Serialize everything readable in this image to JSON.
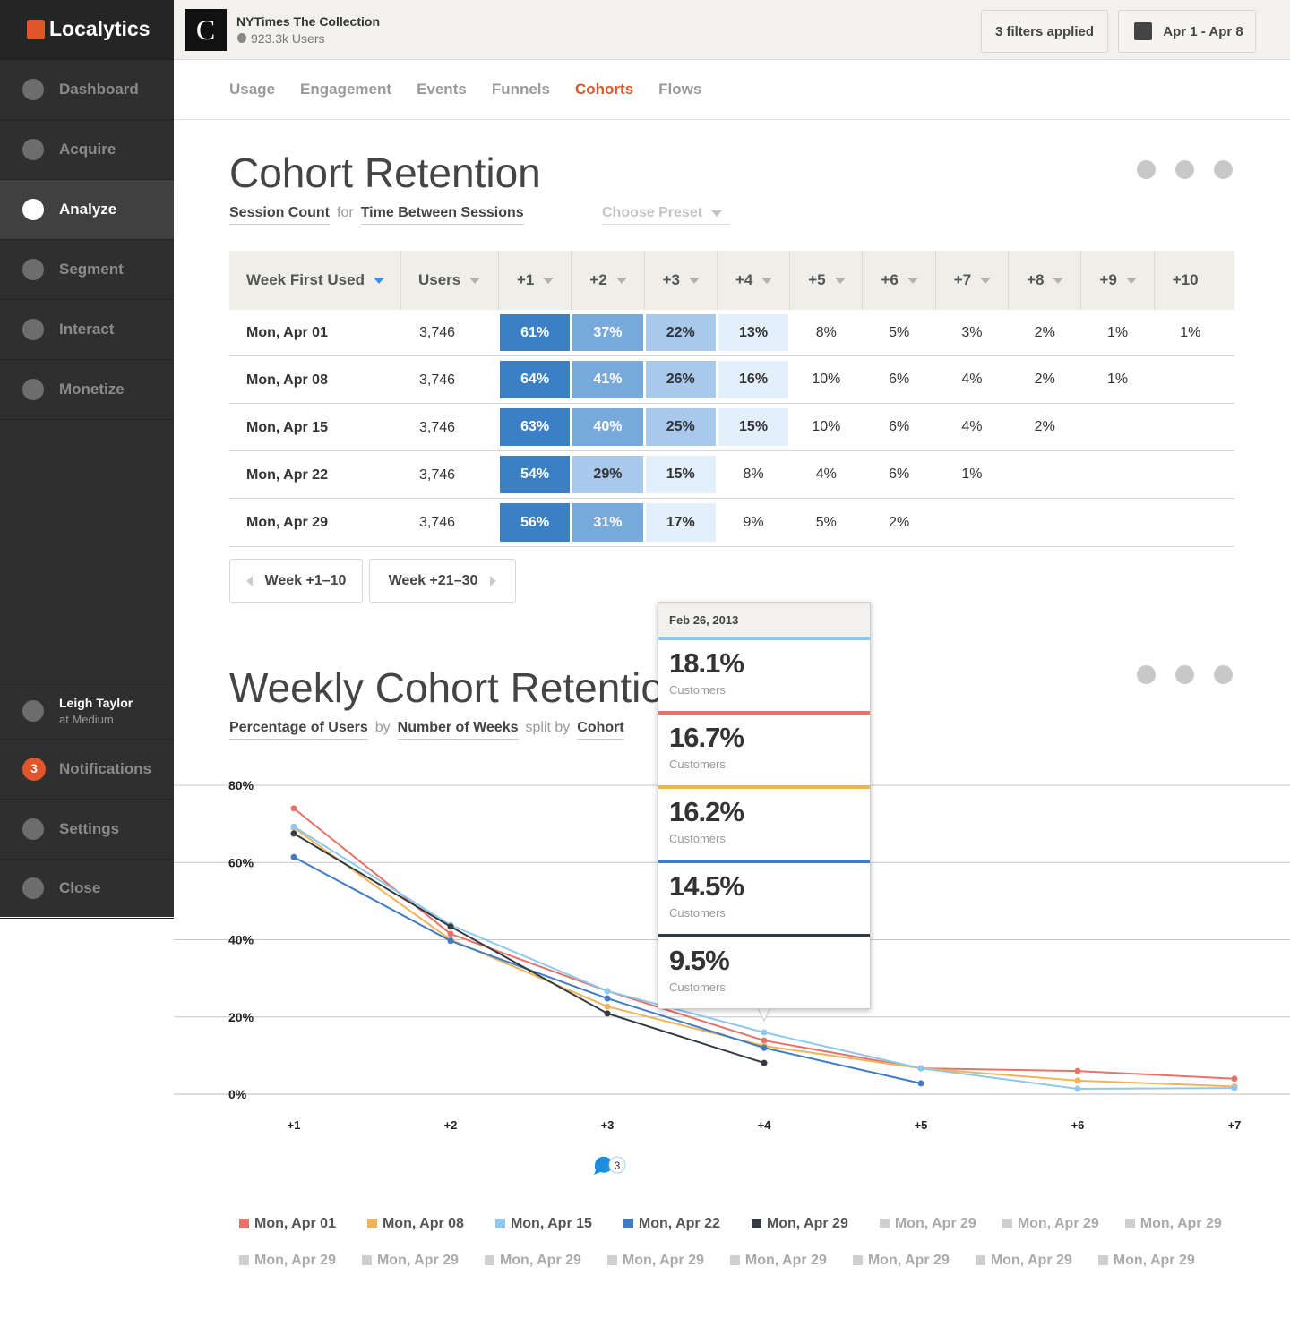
{
  "sidebar": {
    "logo": "Localytics",
    "nav": [
      "Dashboard",
      "Acquire",
      "Analyze",
      "Segment",
      "Interact",
      "Monetize"
    ],
    "active_nav": 2,
    "user_name": "Leigh Taylor",
    "user_org": "at Medium",
    "notification_count": "3",
    "bottom": [
      "Notifications",
      "Settings",
      "Close"
    ]
  },
  "header": {
    "app_name": "NYTimes The Collection",
    "app_users": "923.3k Users",
    "filters": "3 filters applied",
    "date_range": "Apr 1 - Apr 8"
  },
  "tabs": {
    "items": [
      "Usage",
      "Engagement",
      "Events",
      "Funnels",
      "Cohorts",
      "Flows"
    ],
    "active": 4
  },
  "cohort": {
    "title": "Cohort Retention",
    "subtitle": [
      "Session Count",
      "for",
      "Time Between Sessions"
    ],
    "preset": "Choose Preset",
    "table": {
      "columns": [
        "Week First Used",
        "Users",
        "+1",
        "+2",
        "+3",
        "+4",
        "+5",
        "+6",
        "+7",
        "+8",
        "+9",
        "+10"
      ],
      "rows": [
        {
          "label": "Mon, Apr 01",
          "users": "3,746",
          "cells": [
            "61%",
            "37%",
            "22%",
            "13%",
            "8%",
            "5%",
            "3%",
            "2%",
            "1%",
            "1%"
          ],
          "colors": [
            "#3b7fc4",
            "#78a9dc",
            "#a8c8ec",
            "#e3effb",
            null,
            null,
            null,
            null,
            null,
            null
          ]
        },
        {
          "label": "Mon, Apr 08",
          "users": "3,746",
          "cells": [
            "64%",
            "41%",
            "26%",
            "16%",
            "10%",
            "6%",
            "4%",
            "2%",
            "1%"
          ],
          "colors": [
            "#3b7fc4",
            "#78a9dc",
            "#a8c8ec",
            "#e3effb",
            null,
            null,
            null,
            null,
            null
          ]
        },
        {
          "label": "Mon, Apr 15",
          "users": "3,746",
          "cells": [
            "63%",
            "40%",
            "25%",
            "15%",
            "10%",
            "6%",
            "4%",
            "2%"
          ],
          "colors": [
            "#3b7fc4",
            "#78a9dc",
            "#a8c8ec",
            "#e3effb",
            null,
            null,
            null,
            null
          ]
        },
        {
          "label": "Mon, Apr 22",
          "users": "3,746",
          "cells": [
            "54%",
            "29%",
            "15%",
            "8%",
            "4%",
            "6%",
            "1%"
          ],
          "colors": [
            "#3b7fc4",
            "#a8c8ec",
            "#e3effb",
            null,
            null,
            null,
            null
          ]
        },
        {
          "label": "Mon, Apr 29",
          "users": "3,746",
          "cells": [
            "56%",
            "31%",
            "17%",
            "9%",
            "5%",
            "2%"
          ],
          "colors": [
            "#3b7fc4",
            "#78a9dc",
            "#e3effb",
            null,
            null,
            null
          ]
        }
      ]
    },
    "pager": [
      "Week +1–10",
      "Week +21–30"
    ]
  },
  "weekly": {
    "title": "Weekly Cohort Retention",
    "subtitle": [
      "Percentage of Users",
      "by",
      "Number of Weeks",
      "split by",
      "Cohort"
    ],
    "tooltip": {
      "date": "Feb 26, 2013",
      "items": [
        {
          "value": "18.1%",
          "label": "Customers",
          "color": "#8ec8ef"
        },
        {
          "value": "16.7%",
          "label": "Customers",
          "color": "#e8726a"
        },
        {
          "value": "16.2%",
          "label": "Customers",
          "color": "#f0b35a"
        },
        {
          "value": "14.5%",
          "label": "Customers",
          "color": "#3f7cc2"
        },
        {
          "value": "9.5%",
          "label": "Customers",
          "color": "#333a40"
        }
      ]
    },
    "comment_count": "3",
    "inactive_series": [
      {
        "name": "Mon, Apr 29",
        "color": "#cfcfcf"
      },
      {
        "name": "Mon, Apr 29",
        "color": "#cfcfcf"
      },
      {
        "name": "Mon, Apr 29",
        "color": "#cfcfcf"
      },
      {
        "name": "Mon, Apr 29",
        "color": "#cfcfcf"
      },
      {
        "name": "Mon, Apr 29",
        "color": "#cfcfcf"
      },
      {
        "name": "Mon, Apr 29",
        "color": "#cfcfcf"
      },
      {
        "name": "Mon, Apr 29",
        "color": "#cfcfcf"
      },
      {
        "name": "Mon, Apr 29",
        "color": "#cfcfcf"
      },
      {
        "name": "Mon, Apr 29",
        "color": "#cfcfcf"
      },
      {
        "name": "Mon, Apr 29",
        "color": "#cfcfcf"
      },
      {
        "name": "Mon, Apr 29",
        "color": "#cfcfcf"
      }
    ]
  },
  "chart_data": {
    "type": "line",
    "categories": [
      "+1",
      "+2",
      "+3",
      "+4",
      "+5",
      "+6",
      "+7"
    ],
    "ylim": [
      0,
      80
    ],
    "yticks": [
      {
        "value": 0,
        "label": "0%"
      },
      {
        "value": 20,
        "label": "20%"
      },
      {
        "value": 40,
        "label": "40%"
      },
      {
        "value": 60,
        "label": "60%"
      },
      {
        "value": 80,
        "label": "80%"
      }
    ],
    "grid": true,
    "series": [
      {
        "name": "Mon, Apr 01",
        "color": "#e8726a",
        "values": [
          74,
          41.5,
          26.7,
          13.9,
          6.7,
          6,
          4
        ]
      },
      {
        "name": "Mon, Apr 08",
        "color": "#f0b35a",
        "values": [
          69,
          40,
          22.7,
          12.5,
          6.7,
          3.5,
          2
        ]
      },
      {
        "name": "Mon, Apr 15",
        "color": "#8ec8ef",
        "values": [
          69.3,
          43.8,
          26.7,
          16,
          6.7,
          1.4,
          1.6
        ]
      },
      {
        "name": "Mon, Apr 22",
        "color": "#3f7cc2",
        "values": [
          61.4,
          39.7,
          24.8,
          12,
          2.8,
          null,
          null
        ]
      },
      {
        "name": "Mon, Apr 29",
        "color": "#333a40",
        "values": [
          67.5,
          43.4,
          20.9,
          8.1,
          null,
          null,
          null
        ]
      }
    ]
  }
}
